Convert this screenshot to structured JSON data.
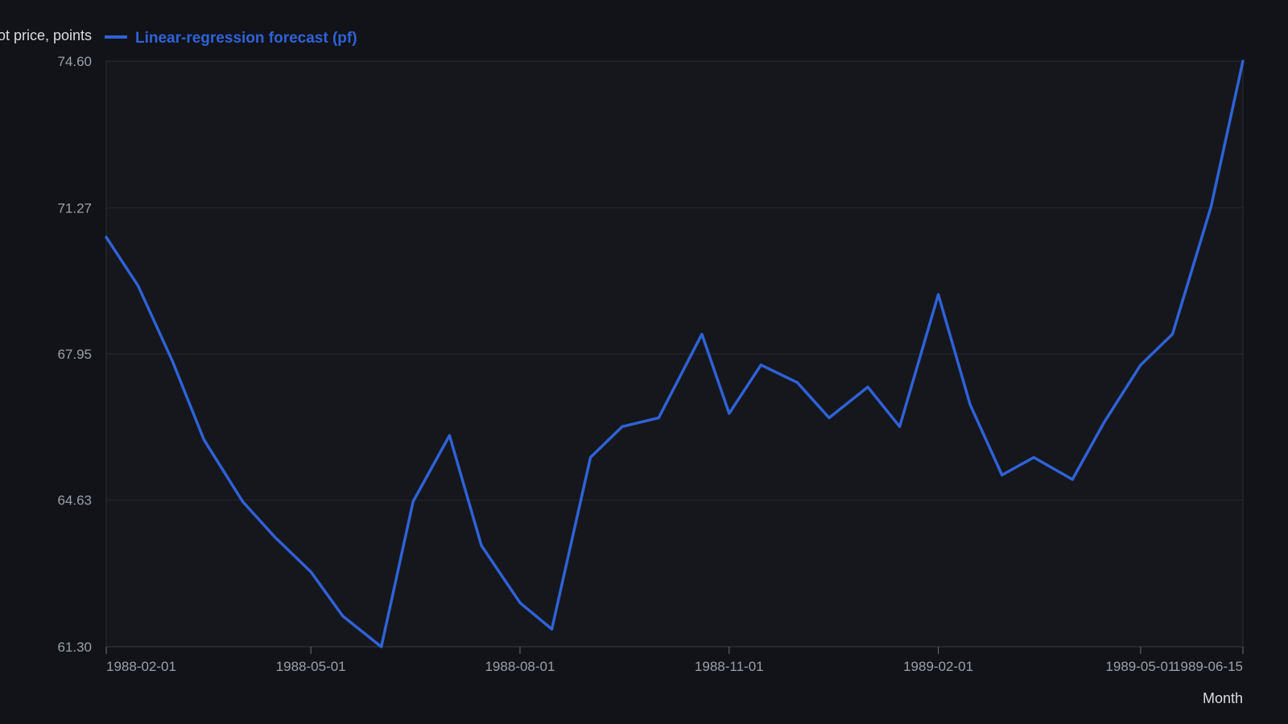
{
  "chart_data": {
    "type": "line",
    "ylabel": "Spot price, points",
    "xlabel": "Month",
    "y_ticks": [
      "61.30",
      "64.63",
      "67.95",
      "71.27",
      "74.60"
    ],
    "ylim": [
      61.3,
      74.6
    ],
    "x_ticks": [
      {
        "label": "1988-02-01",
        "date": "1988-02-01"
      },
      {
        "label": "1988-05-01",
        "date": "1988-05-01"
      },
      {
        "label": "1988-08-01",
        "date": "1988-08-01"
      },
      {
        "label": "1988-11-01",
        "date": "1988-11-01"
      },
      {
        "label": "1989-02-01",
        "date": "1989-02-01"
      },
      {
        "label": "1989-05-01",
        "date": "1989-05-01"
      },
      {
        "label": "1989-06-15",
        "date": "1989-06-15"
      }
    ],
    "xlim": [
      "1988-02-01",
      "1989-06-15"
    ],
    "grid": "horizontal",
    "legend_position": "top-left",
    "series": [
      {
        "name": "Linear-regression forecast (pf)",
        "color": "#2f62d8",
        "points": [
          {
            "x": "1988-02-01",
            "y": 70.6
          },
          {
            "x": "1988-02-15",
            "y": 69.5
          },
          {
            "x": "1988-03-01",
            "y": 67.8
          },
          {
            "x": "1988-03-15",
            "y": 66.0
          },
          {
            "x": "1988-04-01",
            "y": 64.6
          },
          {
            "x": "1988-04-15",
            "y": 63.8
          },
          {
            "x": "1988-05-01",
            "y": 63.0
          },
          {
            "x": "1988-05-15",
            "y": 62.0
          },
          {
            "x": "1988-06-01",
            "y": 61.3
          },
          {
            "x": "1988-06-15",
            "y": 64.6
          },
          {
            "x": "1988-07-01",
            "y": 66.1
          },
          {
            "x": "1988-07-15",
            "y": 63.6
          },
          {
            "x": "1988-08-01",
            "y": 62.3
          },
          {
            "x": "1988-08-15",
            "y": 61.7
          },
          {
            "x": "1988-09-01",
            "y": 65.6
          },
          {
            "x": "1988-09-15",
            "y": 66.3
          },
          {
            "x": "1988-10-01",
            "y": 66.5
          },
          {
            "x": "1988-10-20",
            "y": 68.4
          },
          {
            "x": "1988-11-01",
            "y": 66.6
          },
          {
            "x": "1988-11-15",
            "y": 67.7
          },
          {
            "x": "1988-12-01",
            "y": 67.3
          },
          {
            "x": "1988-12-15",
            "y": 66.5
          },
          {
            "x": "1989-01-01",
            "y": 67.2
          },
          {
            "x": "1989-01-15",
            "y": 66.3
          },
          {
            "x": "1989-02-01",
            "y": 69.3
          },
          {
            "x": "1989-02-15",
            "y": 66.8
          },
          {
            "x": "1989-03-01",
            "y": 65.2
          },
          {
            "x": "1989-03-15",
            "y": 65.6
          },
          {
            "x": "1989-04-01",
            "y": 65.1
          },
          {
            "x": "1989-04-15",
            "y": 66.4
          },
          {
            "x": "1989-05-01",
            "y": 67.7
          },
          {
            "x": "1989-05-15",
            "y": 68.4
          },
          {
            "x": "1989-06-01",
            "y": 71.3
          },
          {
            "x": "1989-06-15",
            "y": 74.6
          }
        ]
      }
    ]
  }
}
